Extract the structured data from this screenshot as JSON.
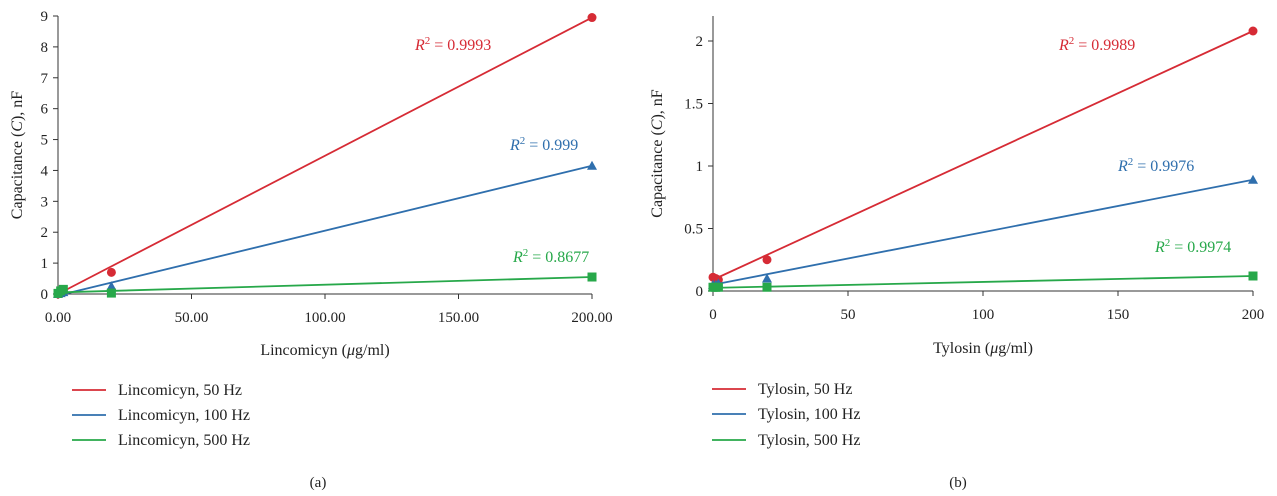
{
  "chart_data": [
    {
      "type": "scatter",
      "panel_label": "(a)",
      "xlabel_main": "Lincomicyn (",
      "xlabel_mu": "μ",
      "xlabel_rest": "g/ml)",
      "ylabel_main": "Capacitance (",
      "ylabel_var": "C",
      "ylabel_rest": "), nF",
      "xlim": [
        0,
        200
      ],
      "ylim": [
        0,
        9
      ],
      "xticks": [
        0,
        50,
        100,
        150,
        200
      ],
      "xtick_labels": [
        "0.00",
        "50.00",
        "100.00",
        "150.00",
        "200.00"
      ],
      "yticks": [
        0,
        1,
        2,
        3,
        4,
        5,
        6,
        7,
        8,
        9
      ],
      "ytick_labels": [
        "0",
        "1",
        "2",
        "3",
        "4",
        "5",
        "6",
        "7",
        "8",
        "9"
      ],
      "grid": false,
      "legend_position": "bottom-left",
      "series": [
        {
          "name": "Lincomicyn, 50 Hz",
          "color": "#d62b35",
          "marker": "circle",
          "x": [
            0,
            1,
            2,
            20,
            200
          ],
          "y": [
            0.0,
            0.05,
            0.1,
            0.7,
            8.95
          ],
          "fit": [
            [
              0,
              0.0
            ],
            [
              200,
              8.95
            ]
          ],
          "r2_sup": "2",
          "r2_text": " = 0.9993"
        },
        {
          "name": "Lincomicyn, 100 Hz",
          "color": "#2f6fad",
          "marker": "triangle",
          "x": [
            0,
            1,
            2,
            20,
            200
          ],
          "y": [
            0.0,
            0.03,
            0.06,
            0.25,
            4.15
          ],
          "fit": [
            [
              0,
              -0.05
            ],
            [
              200,
              4.15
            ]
          ],
          "r2_sup": "2",
          "r2_text": " = 0.999"
        },
        {
          "name": "Lincomicyn, 500 Hz",
          "color": "#27a84a",
          "marker": "square",
          "x": [
            0,
            1,
            2,
            20,
            200
          ],
          "y": [
            0.02,
            0.1,
            0.15,
            0.03,
            0.55
          ],
          "fit": [
            [
              0,
              0.05
            ],
            [
              200,
              0.55
            ]
          ],
          "r2_sup": "2",
          "r2_text": " = 0.8677"
        }
      ]
    },
    {
      "type": "scatter",
      "panel_label": "(b)",
      "xlabel_main": "Tylosin (",
      "xlabel_mu": "μ",
      "xlabel_rest": "g/ml)",
      "ylabel_main": "Capacitance (",
      "ylabel_var": "C",
      "ylabel_rest": "), nF",
      "xlim": [
        0,
        200
      ],
      "ylim": [
        0,
        2.2
      ],
      "xticks": [
        0,
        50,
        100,
        150,
        200
      ],
      "xtick_labels": [
        "0",
        "50",
        "100",
        "150",
        "200"
      ],
      "yticks": [
        0,
        0.5,
        1,
        1.5,
        2
      ],
      "ytick_labels": [
        "0",
        "0.5",
        "1",
        "1.5",
        "2"
      ],
      "grid": false,
      "legend_position": "bottom-left",
      "series": [
        {
          "name": "Tylosin, 50 Hz",
          "color": "#d62b35",
          "marker": "circle",
          "x": [
            0,
            1,
            2,
            20,
            200
          ],
          "y": [
            0.11,
            0.1,
            0.09,
            0.25,
            2.08
          ],
          "fit": [
            [
              0,
              0.09
            ],
            [
              200,
              2.08
            ]
          ],
          "r2_sup": "2",
          "r2_text": " = 0.9989"
        },
        {
          "name": "Tylosin, 100 Hz",
          "color": "#2f6fad",
          "marker": "triangle",
          "x": [
            0,
            1,
            2,
            20,
            200
          ],
          "y": [
            0.05,
            0.05,
            0.06,
            0.1,
            0.89
          ],
          "fit": [
            [
              0,
              0.05
            ],
            [
              200,
              0.89
            ]
          ],
          "r2_sup": "2",
          "r2_text": " = 0.9976"
        },
        {
          "name": "Tylosin, 500 Hz",
          "color": "#27a84a",
          "marker": "square",
          "x": [
            0,
            1,
            2,
            20,
            200
          ],
          "y": [
            0.03,
            0.03,
            0.03,
            0.03,
            0.12
          ],
          "fit": [
            [
              0,
              0.025
            ],
            [
              200,
              0.12
            ]
          ],
          "r2_sup": "2",
          "r2_text": " = 0.9974"
        }
      ]
    }
  ]
}
